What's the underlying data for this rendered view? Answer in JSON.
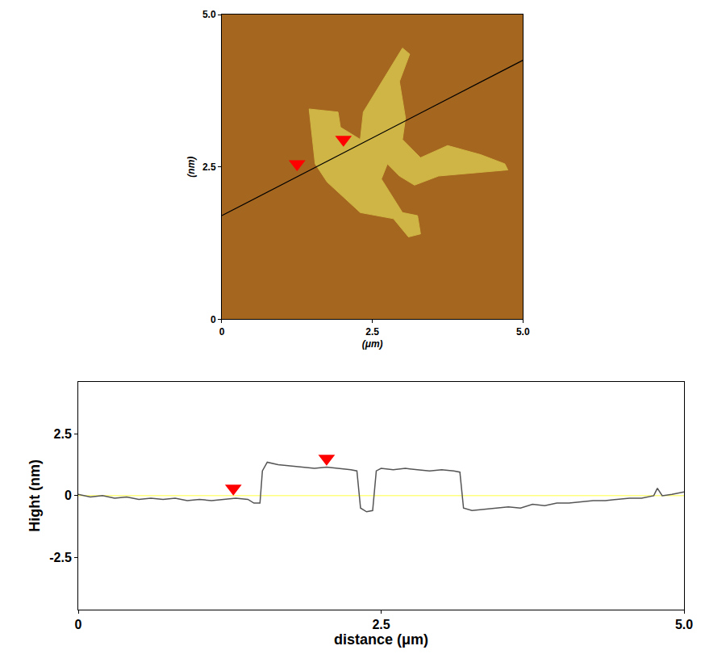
{
  "chart_data": [
    {
      "type": "image",
      "x_label": "(μm)",
      "y_label": "(nm)",
      "color": "#a5661f",
      "xlim": [
        0,
        5
      ],
      "ylim": [
        0,
        5
      ],
      "xticks": [
        0,
        2.5,
        {
          "value": 5,
          "label": "5.0"
        }
      ],
      "yticks": [
        0,
        2.5,
        {
          "value": 5,
          "label": "5.0"
        }
      ],
      "series": [
        {
          "type": "area",
          "color": "#cfb545",
          "x": [
            1.45,
            1.93,
            1.97,
            2.3,
            2.35,
            2.85,
            3.0,
            3.12,
            2.95,
            3.05,
            3.0,
            3.3,
            3.75,
            4.3,
            4.7,
            4.75,
            4.2,
            3.6,
            3.2,
            2.95,
            2.75,
            2.65,
            3.0,
            3.25,
            3.3,
            3.1,
            2.85,
            2.3,
            1.75,
            1.55,
            1.45
          ],
          "y": [
            3.45,
            3.4,
            3.15,
            2.95,
            3.4,
            4.2,
            4.45,
            4.35,
            3.9,
            3.3,
            2.95,
            2.65,
            2.85,
            2.7,
            2.55,
            2.45,
            2.4,
            2.35,
            2.2,
            2.35,
            2.55,
            2.3,
            1.75,
            1.7,
            1.4,
            1.35,
            1.65,
            1.75,
            2.25,
            2.55,
            3.45
          ]
        },
        {
          "type": "line",
          "color": "#000000",
          "x": [
            0,
            5
          ],
          "y": [
            1.7,
            4.25
          ]
        },
        {
          "type": "scatter",
          "marker": "triangle-down",
          "color": "#ff0000",
          "x": [
            1.25,
            2.02
          ],
          "y": [
            2.55,
            2.95
          ]
        }
      ]
    },
    {
      "type": "line",
      "x_label": "distance (μm)",
      "y_label": "Hight (nm)",
      "xlim": [
        0,
        5
      ],
      "ylim": [
        -4.6,
        4.6
      ],
      "xticks": [
        0,
        2.5,
        {
          "value": 5,
          "label": "5.0"
        }
      ],
      "yticks": [
        -2.5,
        0,
        2.5
      ],
      "series": [
        {
          "type": "line",
          "color": "#ffff80",
          "x": [
            0,
            5
          ],
          "y": [
            0,
            0
          ]
        },
        {
          "type": "line",
          "color": "#555555",
          "x": [
            0,
            0.1,
            0.2,
            0.3,
            0.4,
            0.5,
            0.6,
            0.7,
            0.8,
            0.9,
            1.0,
            1.1,
            1.2,
            1.3,
            1.4,
            1.45,
            1.5,
            1.52,
            1.56,
            1.65,
            1.75,
            1.85,
            1.95,
            2.05,
            2.15,
            2.25,
            2.3,
            2.33,
            2.38,
            2.43,
            2.46,
            2.5,
            2.6,
            2.7,
            2.8,
            2.9,
            3.0,
            3.1,
            3.15,
            3.18,
            3.25,
            3.35,
            3.45,
            3.55,
            3.65,
            3.75,
            3.85,
            3.95,
            4.05,
            4.15,
            4.25,
            4.35,
            4.45,
            4.55,
            4.65,
            4.75,
            4.78,
            4.82,
            4.9,
            5.0
          ],
          "y": [
            0.05,
            -0.05,
            0.0,
            -0.1,
            -0.05,
            -0.15,
            -0.1,
            -0.15,
            -0.1,
            -0.2,
            -0.15,
            -0.2,
            -0.15,
            -0.1,
            -0.15,
            -0.3,
            -0.3,
            1.0,
            1.35,
            1.25,
            1.2,
            1.15,
            1.1,
            1.15,
            1.1,
            1.05,
            1.0,
            -0.5,
            -0.65,
            -0.6,
            1.0,
            1.1,
            1.05,
            1.1,
            1.05,
            1.0,
            1.05,
            1.0,
            0.95,
            -0.5,
            -0.6,
            -0.55,
            -0.5,
            -0.45,
            -0.5,
            -0.35,
            -0.4,
            -0.3,
            -0.3,
            -0.25,
            -0.2,
            -0.2,
            -0.15,
            -0.1,
            -0.1,
            0.0,
            0.3,
            0.0,
            0.05,
            0.15
          ]
        },
        {
          "type": "scatter",
          "marker": "triangle-down",
          "color": "#ff0000",
          "x": [
            1.28,
            2.05
          ],
          "y": [
            0.3,
            1.5
          ]
        }
      ]
    }
  ]
}
